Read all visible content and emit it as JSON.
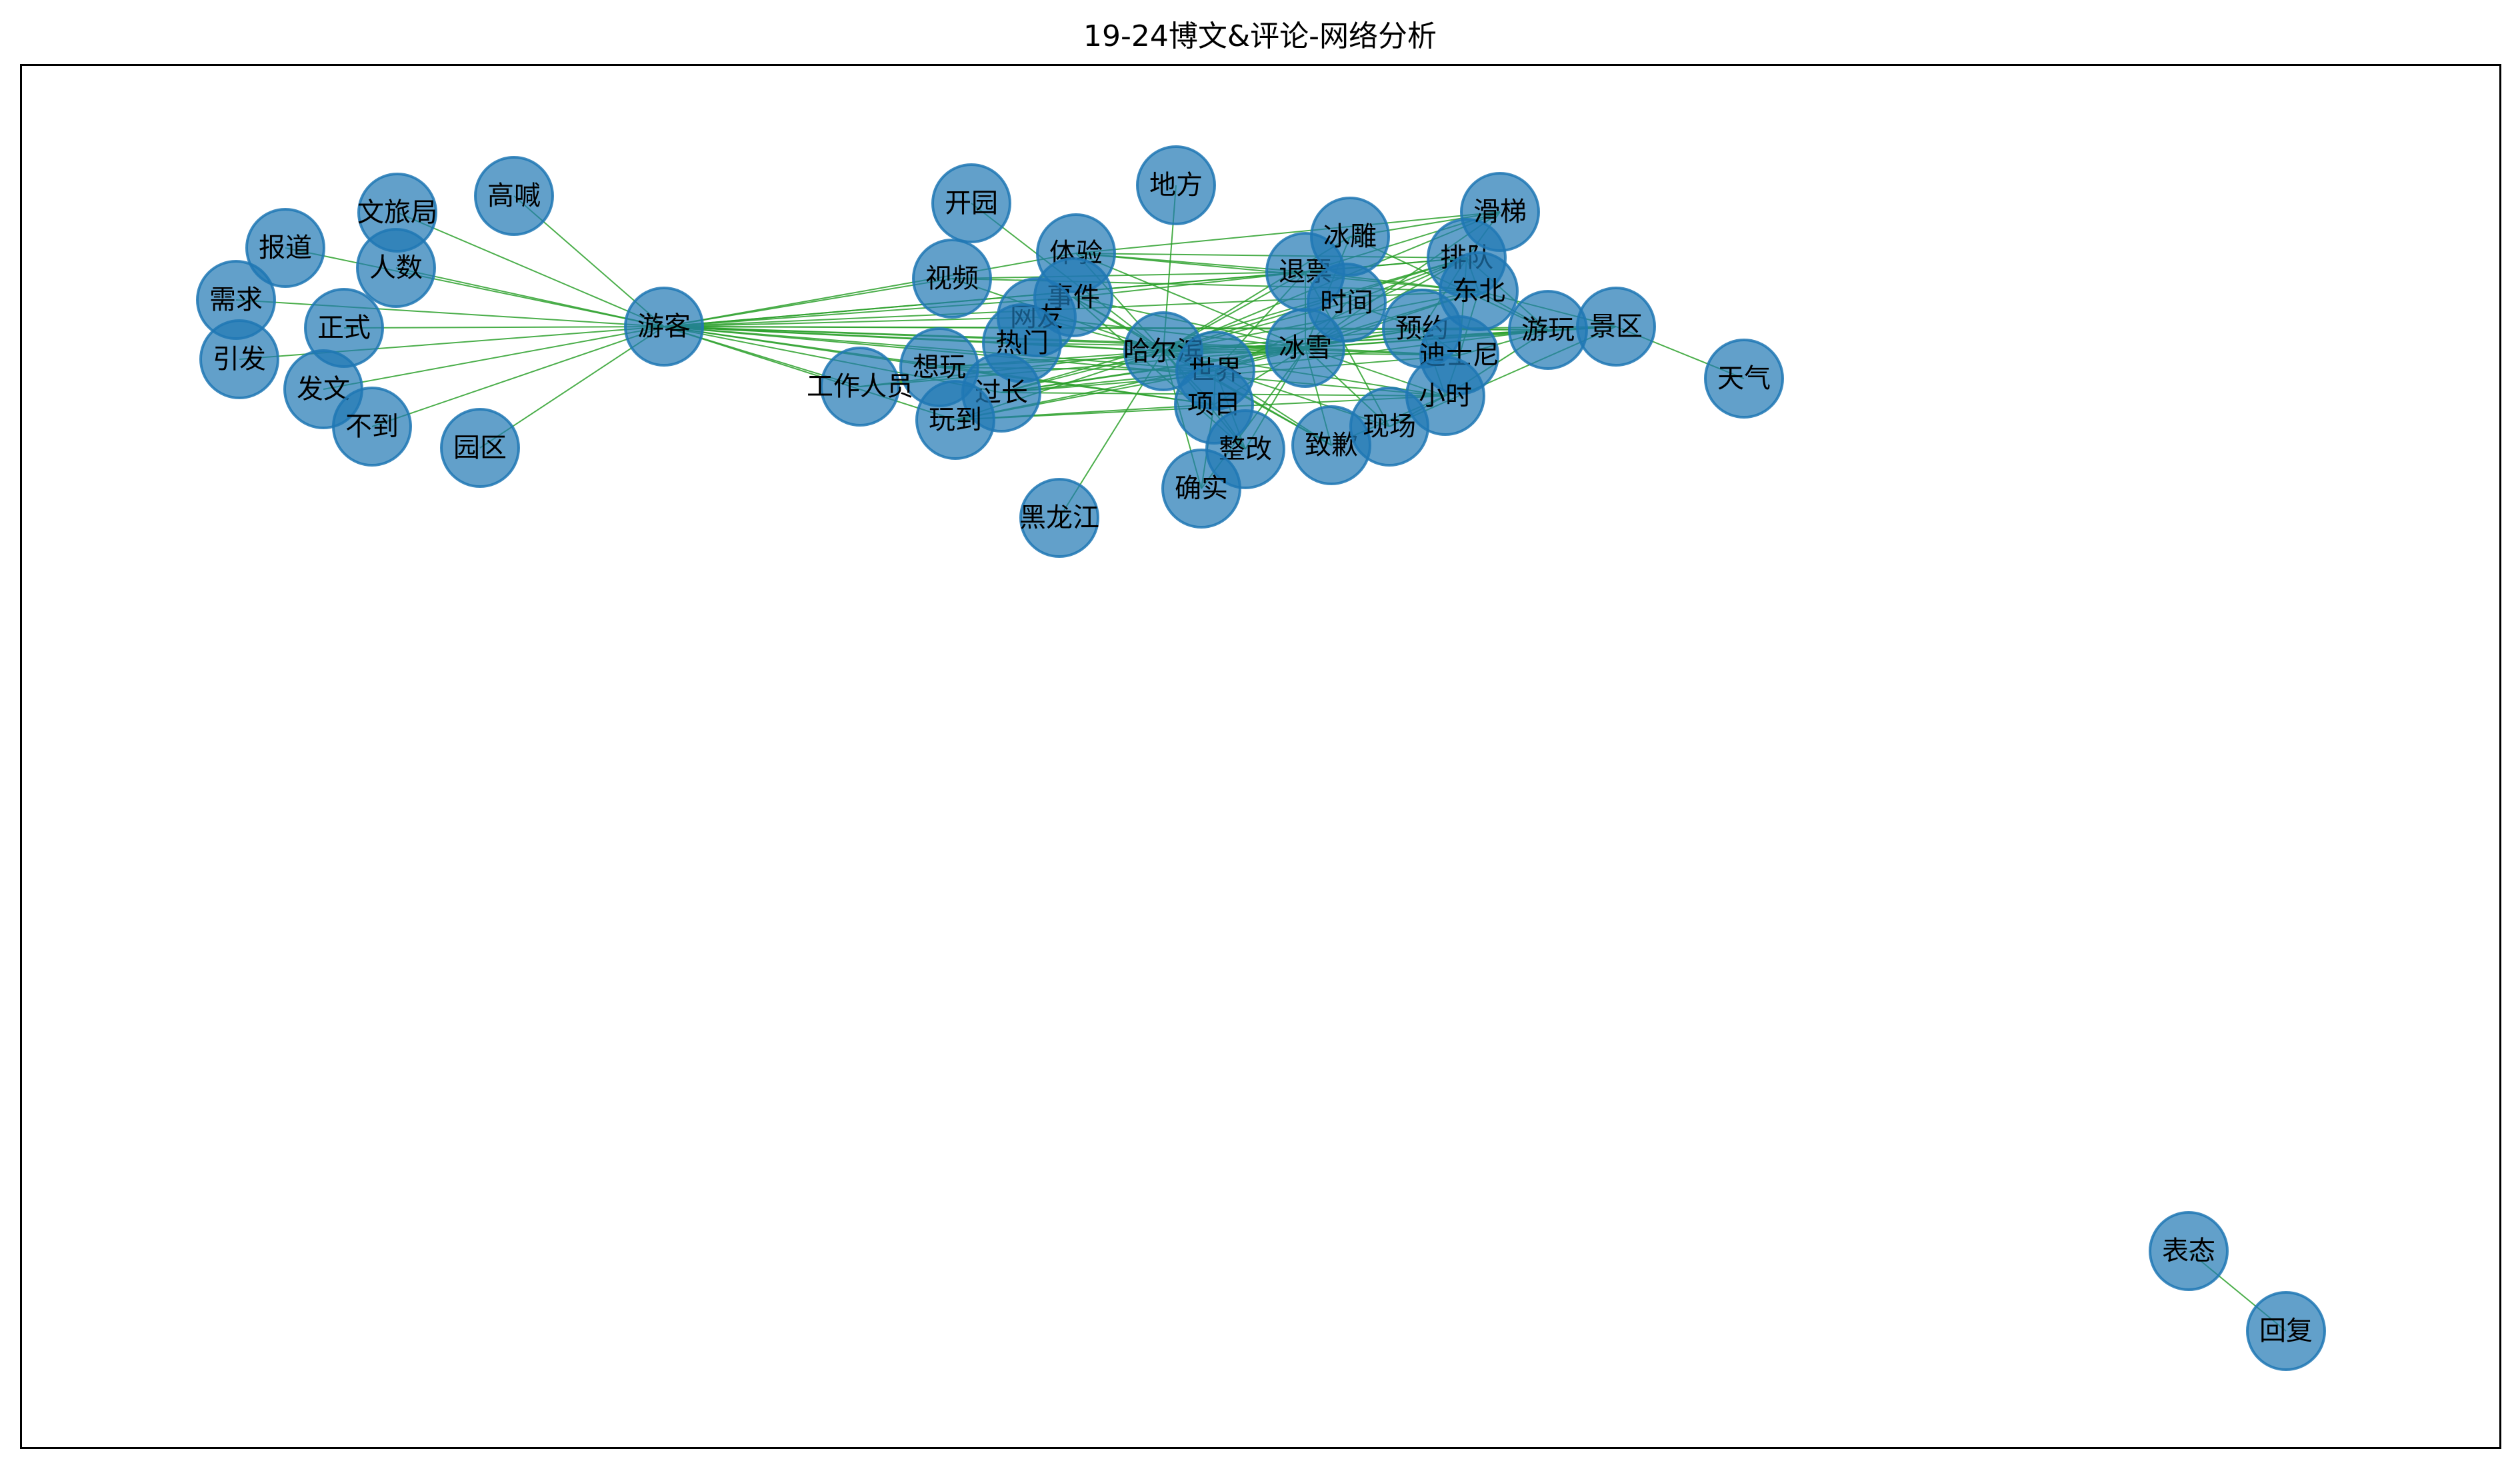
{
  "title": "19-24博文&评论-网络分析",
  "colors": {
    "node_fill": "#1f77b4",
    "edge": "#2ca02c",
    "text": "#000000",
    "frame": "#000000"
  },
  "nodes": [
    {
      "id": "hub_youke",
      "label": "游客"
    },
    {
      "id": "gaohan",
      "label": "高喊"
    },
    {
      "id": "wenlvju",
      "label": "文旅局"
    },
    {
      "id": "baodao",
      "label": "报道"
    },
    {
      "id": "renshu",
      "label": "人数"
    },
    {
      "id": "xuqiu",
      "label": "需求"
    },
    {
      "id": "zhengshi",
      "label": "正式"
    },
    {
      "id": "yinfa",
      "label": "引发"
    },
    {
      "id": "fawen",
      "label": "发文"
    },
    {
      "id": "budao",
      "label": "不到"
    },
    {
      "id": "yuanqu",
      "label": "园区"
    },
    {
      "id": "kaiyuan",
      "label": "开园"
    },
    {
      "id": "difang",
      "label": "地方"
    },
    {
      "id": "tiyan",
      "label": "体验"
    },
    {
      "id": "shipin",
      "label": "视频"
    },
    {
      "id": "shijian",
      "label": "事件"
    },
    {
      "id": "wangyou",
      "label": "网友"
    },
    {
      "id": "remen",
      "label": "热门"
    },
    {
      "id": "xiangwan",
      "label": "想玩"
    },
    {
      "id": "gongzuorenyuan",
      "label": "工作人员"
    },
    {
      "id": "guochang",
      "label": "过长"
    },
    {
      "id": "wandao",
      "label": "玩到"
    },
    {
      "id": "harbin",
      "label": "哈尔滨"
    },
    {
      "id": "shijie",
      "label": "世界"
    },
    {
      "id": "xiangmu",
      "label": "项目"
    },
    {
      "id": "zhenggai",
      "label": "整改"
    },
    {
      "id": "queshi",
      "label": "确实"
    },
    {
      "id": "heilongjiang",
      "label": "黑龙江"
    },
    {
      "id": "bingxue",
      "label": "冰雪"
    },
    {
      "id": "tuipiao",
      "label": "退票"
    },
    {
      "id": "bingdiao",
      "label": "冰雕"
    },
    {
      "id": "shijian2",
      "label": "时间"
    },
    {
      "id": "zhiqian",
      "label": "致歉"
    },
    {
      "id": "xianchang",
      "label": "现场"
    },
    {
      "id": "yuyue",
      "label": "预约"
    },
    {
      "id": "dishini",
      "label": "迪士尼"
    },
    {
      "id": "xiaoshi",
      "label": "小时"
    },
    {
      "id": "paidui",
      "label": "排队"
    },
    {
      "id": "dongbei",
      "label": "东北"
    },
    {
      "id": "huati",
      "label": "滑梯"
    },
    {
      "id": "youwan",
      "label": "游玩"
    },
    {
      "id": "jingqu",
      "label": "景区"
    },
    {
      "id": "tianqi",
      "label": "天气"
    },
    {
      "id": "biaotai",
      "label": "表态"
    },
    {
      "id": "huifu",
      "label": "回复"
    }
  ],
  "edges": [
    [
      "hub_youke",
      "gaohan"
    ],
    [
      "hub_youke",
      "wenlvju"
    ],
    [
      "hub_youke",
      "baodao"
    ],
    [
      "hub_youke",
      "renshu"
    ],
    [
      "hub_youke",
      "xuqiu"
    ],
    [
      "hub_youke",
      "zhengshi"
    ],
    [
      "hub_youke",
      "yinfa"
    ],
    [
      "hub_youke",
      "fawen"
    ],
    [
      "hub_youke",
      "budao"
    ],
    [
      "hub_youke",
      "yuanqu"
    ],
    [
      "hub_youke",
      "shipin"
    ],
    [
      "hub_youke",
      "tiyan"
    ],
    [
      "hub_youke",
      "shijian"
    ],
    [
      "hub_youke",
      "wangyou"
    ],
    [
      "hub_youke",
      "remen"
    ],
    [
      "hub_youke",
      "xiangwan"
    ],
    [
      "hub_youke",
      "gongzuorenyuan"
    ],
    [
      "hub_youke",
      "guochang"
    ],
    [
      "hub_youke",
      "wandao"
    ],
    [
      "hub_youke",
      "harbin"
    ],
    [
      "hub_youke",
      "bingxue"
    ],
    [
      "hub_youke",
      "shijie"
    ],
    [
      "hub_youke",
      "xiangmu"
    ],
    [
      "hub_youke",
      "tuipiao"
    ],
    [
      "hub_youke",
      "paidui"
    ],
    [
      "hub_youke",
      "xiaoshi"
    ],
    [
      "hub_youke",
      "dishini"
    ],
    [
      "hub_youke",
      "yuyue"
    ],
    [
      "hub_youke",
      "youwan"
    ],
    [
      "hub_youke",
      "dongbei"
    ],
    [
      "harbin",
      "kaiyuan"
    ],
    [
      "harbin",
      "difang"
    ],
    [
      "harbin",
      "heilongjiang"
    ],
    [
      "harbin",
      "tiyan"
    ],
    [
      "harbin",
      "shipin"
    ],
    [
      "harbin",
      "shijian"
    ],
    [
      "harbin",
      "wangyou"
    ],
    [
      "harbin",
      "remen"
    ],
    [
      "harbin",
      "xiangwan"
    ],
    [
      "harbin",
      "guochang"
    ],
    [
      "harbin",
      "wandao"
    ],
    [
      "harbin",
      "gongzuorenyuan"
    ],
    [
      "harbin",
      "bingxue"
    ],
    [
      "harbin",
      "shijie"
    ],
    [
      "harbin",
      "xiangmu"
    ],
    [
      "harbin",
      "zhenggai"
    ],
    [
      "harbin",
      "queshi"
    ],
    [
      "harbin",
      "tuipiao"
    ],
    [
      "harbin",
      "bingdiao"
    ],
    [
      "harbin",
      "shijian2"
    ],
    [
      "harbin",
      "zhiqian"
    ],
    [
      "harbin",
      "xianchang"
    ],
    [
      "harbin",
      "yuyue"
    ],
    [
      "harbin",
      "dishini"
    ],
    [
      "harbin",
      "xiaoshi"
    ],
    [
      "harbin",
      "paidui"
    ],
    [
      "harbin",
      "dongbei"
    ],
    [
      "harbin",
      "huati"
    ],
    [
      "harbin",
      "youwan"
    ],
    [
      "harbin",
      "jingqu"
    ],
    [
      "bingxue",
      "tiyan"
    ],
    [
      "bingxue",
      "shijian"
    ],
    [
      "bingxue",
      "wangyou"
    ],
    [
      "bingxue",
      "remen"
    ],
    [
      "bingxue",
      "xiangwan"
    ],
    [
      "bingxue",
      "guochang"
    ],
    [
      "bingxue",
      "wandao"
    ],
    [
      "bingxue",
      "gongzuorenyuan"
    ],
    [
      "bingxue",
      "shijie"
    ],
    [
      "bingxue",
      "xiangmu"
    ],
    [
      "bingxue",
      "zhenggai"
    ],
    [
      "bingxue",
      "queshi"
    ],
    [
      "bingxue",
      "tuipiao"
    ],
    [
      "bingxue",
      "bingdiao"
    ],
    [
      "bingxue",
      "shijian2"
    ],
    [
      "bingxue",
      "zhiqian"
    ],
    [
      "bingxue",
      "xianchang"
    ],
    [
      "bingxue",
      "yuyue"
    ],
    [
      "bingxue",
      "dishini"
    ],
    [
      "bingxue",
      "xiaoshi"
    ],
    [
      "bingxue",
      "paidui"
    ],
    [
      "bingxue",
      "dongbei"
    ],
    [
      "bingxue",
      "huati"
    ],
    [
      "bingxue",
      "youwan"
    ],
    [
      "bingxue",
      "jingqu"
    ],
    [
      "shijie",
      "xiangmu"
    ],
    [
      "shijie",
      "guochang"
    ],
    [
      "shijie",
      "wandao"
    ],
    [
      "shijie",
      "xiangwan"
    ],
    [
      "shijie",
      "tuipiao"
    ],
    [
      "shijie",
      "paidui"
    ],
    [
      "shijie",
      "dongbei"
    ],
    [
      "shijie",
      "youwan"
    ],
    [
      "shijie",
      "zhiqian"
    ],
    [
      "shijie",
      "zhenggai"
    ],
    [
      "tiyan",
      "tuipiao"
    ],
    [
      "tiyan",
      "paidui"
    ],
    [
      "tiyan",
      "dongbei"
    ],
    [
      "tiyan",
      "huati"
    ],
    [
      "shijian",
      "tuipiao"
    ],
    [
      "shijian",
      "zhiqian"
    ],
    [
      "shijian",
      "zhenggai"
    ],
    [
      "shipin",
      "tuipiao"
    ],
    [
      "shipin",
      "dongbei"
    ],
    [
      "guochang",
      "xiaoshi"
    ],
    [
      "guochang",
      "paidui"
    ],
    [
      "guochang",
      "yuyue"
    ],
    [
      "guochang",
      "dishini"
    ],
    [
      "wandao",
      "xiangmu"
    ],
    [
      "wandao",
      "xiaoshi"
    ],
    [
      "xiangwan",
      "xiangmu"
    ],
    [
      "tuipiao",
      "paidui"
    ],
    [
      "tuipiao",
      "huati"
    ],
    [
      "tuipiao",
      "xianchang"
    ],
    [
      "tuipiao",
      "dongbei"
    ],
    [
      "bingdiao",
      "huati"
    ],
    [
      "bingdiao",
      "youwan"
    ],
    [
      "shijian2",
      "paidui"
    ],
    [
      "shijian2",
      "yuyue"
    ],
    [
      "yuyue",
      "dishini"
    ],
    [
      "yuyue",
      "paidui"
    ],
    [
      "yuyue",
      "youwan"
    ],
    [
      "yuyue",
      "jingqu"
    ],
    [
      "yuyue",
      "xiaoshi"
    ],
    [
      "dishini",
      "xiaoshi"
    ],
    [
      "dishini",
      "paidui"
    ],
    [
      "dishini",
      "youwan"
    ],
    [
      "dishini",
      "dongbei"
    ],
    [
      "paidui",
      "dongbei"
    ],
    [
      "paidui",
      "huati"
    ],
    [
      "paidui",
      "youwan"
    ],
    [
      "dongbei",
      "youwan"
    ],
    [
      "dongbei",
      "jingqu"
    ],
    [
      "youwan",
      "jingqu"
    ],
    [
      "youwan",
      "xiaoshi"
    ],
    [
      "jingqu",
      "tianqi"
    ],
    [
      "jingqu",
      "xianchang"
    ],
    [
      "xianchang",
      "xiaoshi"
    ],
    [
      "zhiqian",
      "xiaoshi"
    ],
    [
      "xiangmu",
      "queshi"
    ],
    [
      "zhenggai",
      "xiangmu"
    ],
    [
      "biaotai",
      "huifu"
    ]
  ]
}
